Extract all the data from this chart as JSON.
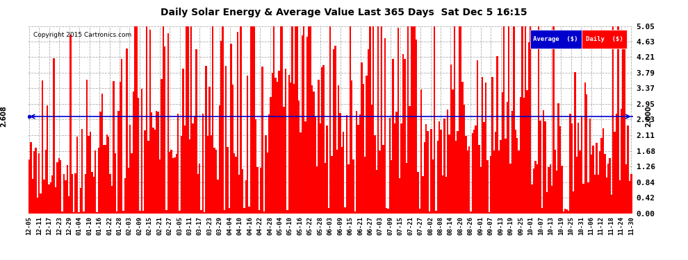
{
  "title": "Daily Solar Energy & Average Value Last 365 Days  Sat Dec 5 16:15",
  "copyright": "Copyright 2015 Cartronics.com",
  "average_value": 2.608,
  "average_label": "2.608",
  "right_average_label": "2.000",
  "ylim": [
    0.0,
    5.05
  ],
  "yticks": [
    0.0,
    0.42,
    0.84,
    1.26,
    1.68,
    2.11,
    2.53,
    2.95,
    3.37,
    3.79,
    4.21,
    4.63,
    5.05
  ],
  "bar_color": "#ff0000",
  "avg_line_color": "#0000cc",
  "background_color": "#ffffff",
  "grid_color": "#999999",
  "legend_avg_bg": "#0000cc",
  "legend_daily_bg": "#ff0000",
  "legend_text_color": "#ffffff",
  "xtick_labels": [
    "12-05",
    "12-11",
    "12-17",
    "12-23",
    "12-29",
    "01-04",
    "01-10",
    "01-16",
    "01-22",
    "01-28",
    "02-03",
    "02-09",
    "02-15",
    "02-21",
    "02-27",
    "03-05",
    "03-11",
    "03-17",
    "03-23",
    "03-29",
    "04-04",
    "04-10",
    "04-16",
    "04-22",
    "04-28",
    "05-04",
    "05-10",
    "05-16",
    "05-22",
    "05-28",
    "06-03",
    "06-09",
    "06-15",
    "06-21",
    "06-27",
    "07-03",
    "07-09",
    "07-15",
    "07-21",
    "07-27",
    "08-02",
    "08-08",
    "08-14",
    "08-20",
    "08-26",
    "09-01",
    "09-07",
    "09-13",
    "09-19",
    "09-25",
    "10-01",
    "10-07",
    "10-13",
    "10-19",
    "10-25",
    "10-31",
    "11-06",
    "11-12",
    "11-18",
    "11-24",
    "11-30"
  ],
  "num_bars": 365,
  "figsize": [
    9.9,
    3.75
  ],
  "dpi": 100
}
